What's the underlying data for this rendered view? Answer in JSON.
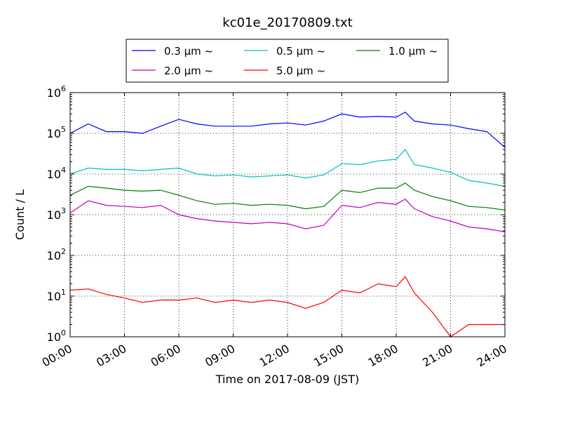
{
  "chart_data": {
    "type": "line",
    "title": "kc01e_20170809.txt",
    "xlabel": "Time on 2017-08-09 (JST)",
    "ylabel": "Count / L",
    "yscale": "log",
    "ylim": [
      1,
      1000000
    ],
    "xlim": [
      "00:00",
      "24:00"
    ],
    "x_ticks": [
      "00:00",
      "03:00",
      "06:00",
      "09:00",
      "12:00",
      "15:00",
      "18:00",
      "21:00",
      "24:00"
    ],
    "y_ticks": [
      {
        "base": "10",
        "exp": "0"
      },
      {
        "base": "10",
        "exp": "1"
      },
      {
        "base": "10",
        "exp": "2"
      },
      {
        "base": "10",
        "exp": "3"
      },
      {
        "base": "10",
        "exp": "4"
      },
      {
        "base": "10",
        "exp": "5"
      },
      {
        "base": "10",
        "exp": "6"
      }
    ],
    "grid": true,
    "legend_position": "top-center",
    "x": [
      "00:00",
      "01:00",
      "02:00",
      "03:00",
      "04:00",
      "05:00",
      "06:00",
      "07:00",
      "08:00",
      "09:00",
      "10:00",
      "11:00",
      "12:00",
      "13:00",
      "14:00",
      "15:00",
      "16:00",
      "17:00",
      "18:00",
      "18:30",
      "19:00",
      "20:00",
      "21:00",
      "22:00",
      "23:00",
      "24:00"
    ],
    "series": [
      {
        "name": "0.3 μm ~",
        "color": "#0000ff",
        "values": [
          100000,
          170000,
          110000,
          110000,
          100000,
          150000,
          220000,
          170000,
          150000,
          150000,
          150000,
          170000,
          180000,
          160000,
          200000,
          300000,
          250000,
          260000,
          250000,
          330000,
          200000,
          170000,
          160000,
          130000,
          110000,
          45000
        ]
      },
      {
        "name": "0.5 μm ~",
        "color": "#00bfbf",
        "values": [
          10000,
          14000,
          13000,
          13000,
          12000,
          13000,
          14000,
          10000,
          9000,
          9500,
          8500,
          9000,
          9500,
          8000,
          9500,
          18000,
          17000,
          21000,
          23000,
          40000,
          17000,
          14000,
          11000,
          7000,
          6000,
          5000
        ]
      },
      {
        "name": "1.0 μm ~",
        "color": "#008000",
        "values": [
          3000,
          5000,
          4500,
          4000,
          3800,
          4000,
          3000,
          2200,
          1800,
          1900,
          1700,
          1800,
          1700,
          1400,
          1600,
          4000,
          3500,
          4500,
          4500,
          6000,
          4000,
          2800,
          2200,
          1600,
          1500,
          1300
        ]
      },
      {
        "name": "2.0 μm ~",
        "color": "#bf00bf",
        "values": [
          1100,
          2200,
          1700,
          1600,
          1500,
          1700,
          1000,
          800,
          700,
          650,
          600,
          650,
          600,
          450,
          550,
          1700,
          1500,
          2000,
          1800,
          2400,
          1400,
          900,
          700,
          500,
          450,
          380
        ]
      },
      {
        "name": "5.0 μm ~",
        "color": "#ff0000",
        "values": [
          14,
          15,
          11,
          9,
          7,
          8,
          8,
          9,
          7,
          8,
          7,
          8,
          7,
          5,
          7,
          14,
          12,
          20,
          17,
          30,
          12,
          4,
          1,
          2,
          2,
          2
        ]
      }
    ]
  }
}
